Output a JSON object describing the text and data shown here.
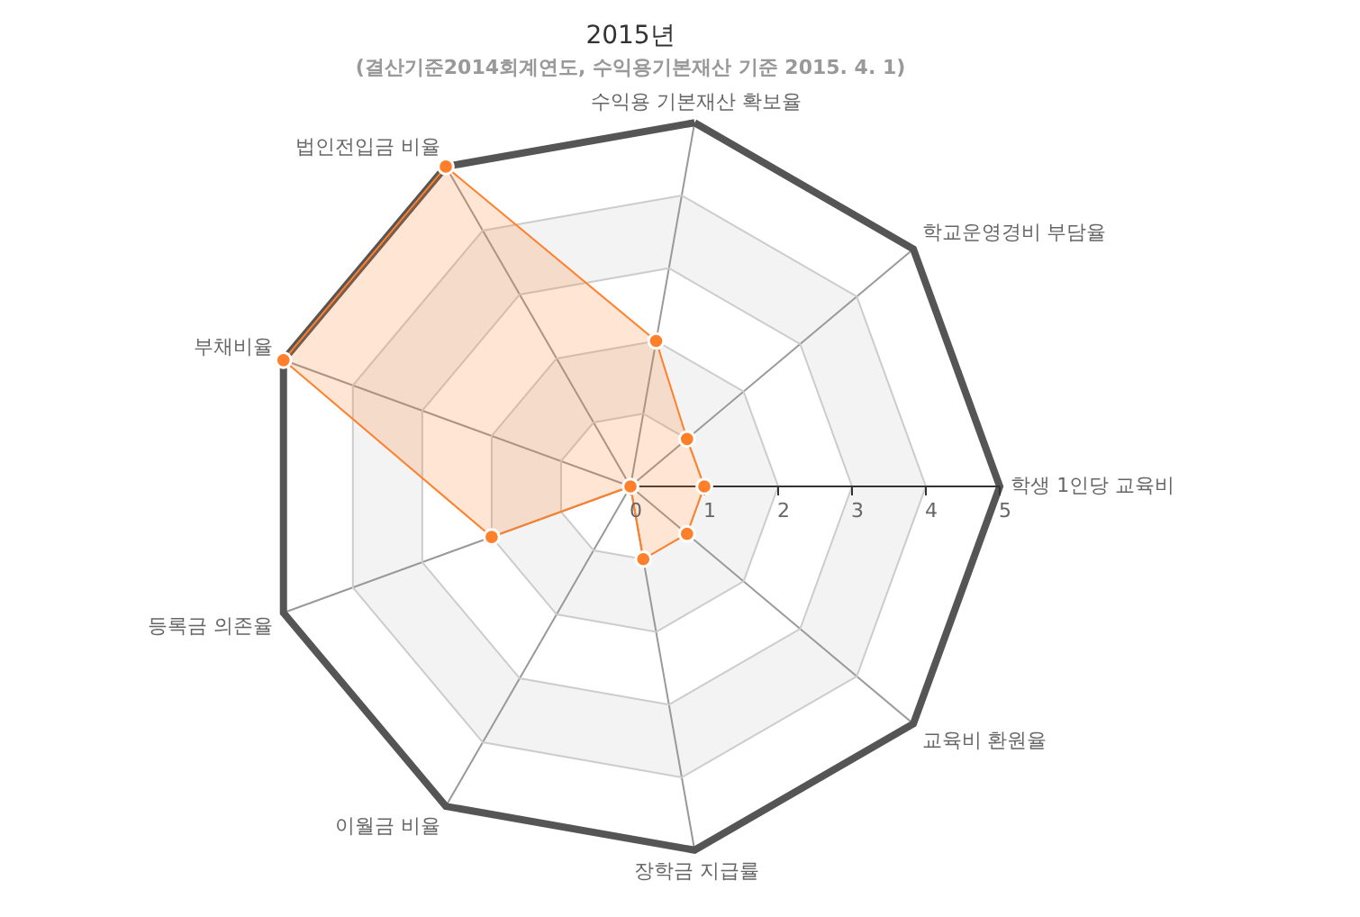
{
  "chart_data": {
    "type": "radar",
    "title": "2015년",
    "subtitle": "(결산기준2014회계연도, 수익용기본재산 기준 2015. 4. 1)",
    "categories": [
      "수익용 기본재산 확보율",
      "학교운영경비 부담율",
      "학생 1인당 교육비",
      "교육비 환원율",
      "장학금 지급률",
      "이월금 비율",
      "등록금 의존율",
      "부채비율",
      "법인전입금 비율"
    ],
    "series": [
      {
        "color": "#ff7f2a",
        "values": [
          2,
          1,
          1,
          1,
          1,
          0,
          2,
          5,
          5
        ]
      }
    ],
    "ylim": [
      0,
      5
    ],
    "yticks": [
      0,
      1,
      2,
      3,
      4,
      5
    ],
    "grid": true,
    "marker": "circle"
  }
}
